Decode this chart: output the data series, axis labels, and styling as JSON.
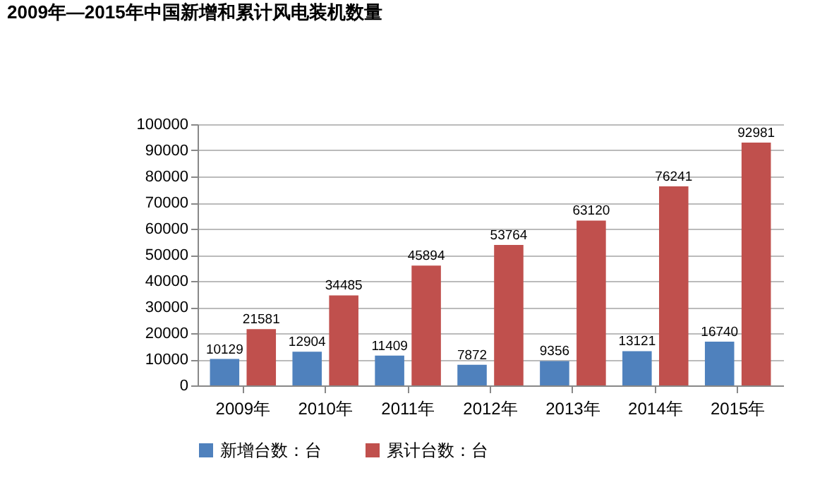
{
  "chart_data": {
    "type": "bar",
    "title": "2009年—2015年中国新增和累计风电装机数量",
    "categories": [
      "2009年",
      "2010年",
      "2011年",
      "2012年",
      "2013年",
      "2014年",
      "2015年"
    ],
    "series": [
      {
        "name": "新增台数：台",
        "color": "#4f81bd",
        "values": [
          10129,
          12904,
          11409,
          7872,
          9356,
          13121,
          16740
        ]
      },
      {
        "name": "累计台数：台",
        "color": "#c0504d",
        "values": [
          21581,
          34485,
          45894,
          53764,
          63120,
          76241,
          92981
        ]
      }
    ],
    "ylim": [
      0,
      100000
    ],
    "yticks": [
      0,
      10000,
      20000,
      30000,
      40000,
      50000,
      60000,
      70000,
      80000,
      90000,
      100000
    ],
    "grid": "y",
    "legend": "bottom",
    "data_labels": true
  }
}
